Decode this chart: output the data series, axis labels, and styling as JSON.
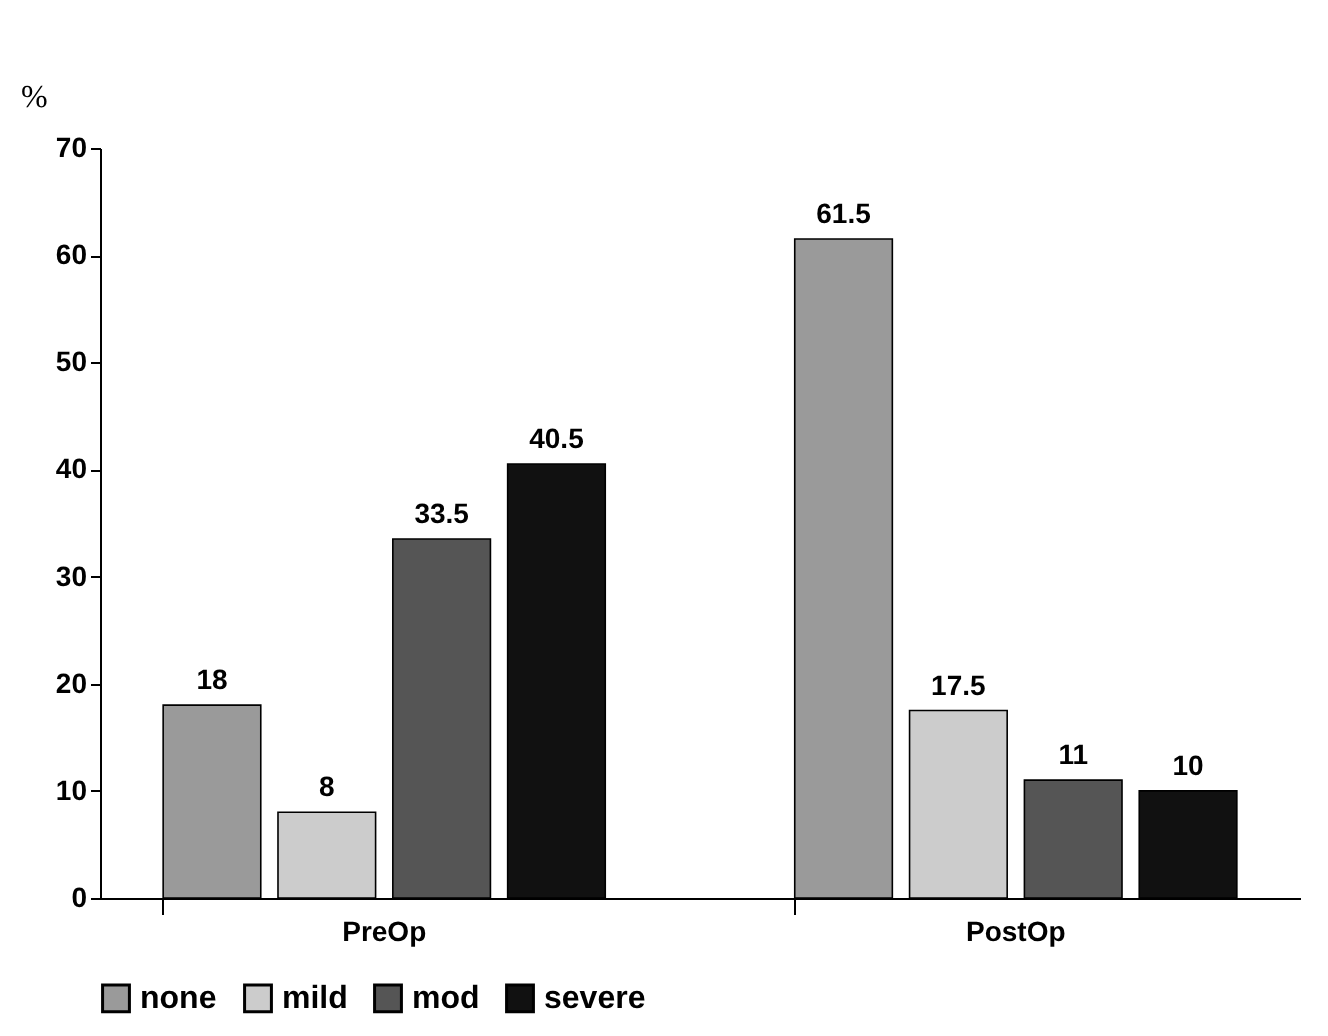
{
  "chart_data": {
    "type": "bar",
    "ylabel": "%",
    "categories": [
      "PreOp",
      "PostOp"
    ],
    "series": [
      {
        "name": "none",
        "color": "#9a9a9a",
        "values": [
          18,
          61.5
        ]
      },
      {
        "name": "mild",
        "color": "#cccccc",
        "values": [
          8,
          17.5
        ]
      },
      {
        "name": "mod",
        "color": "#555555",
        "values": [
          33.5,
          11
        ]
      },
      {
        "name": "severe",
        "color": "#111111",
        "values": [
          40.5,
          10
        ]
      }
    ],
    "ylim": [
      0,
      70
    ],
    "yticks": [
      0,
      10,
      20,
      30,
      40,
      50,
      60,
      70
    ],
    "grid": false,
    "legend": "bottom",
    "data_labels": true
  }
}
